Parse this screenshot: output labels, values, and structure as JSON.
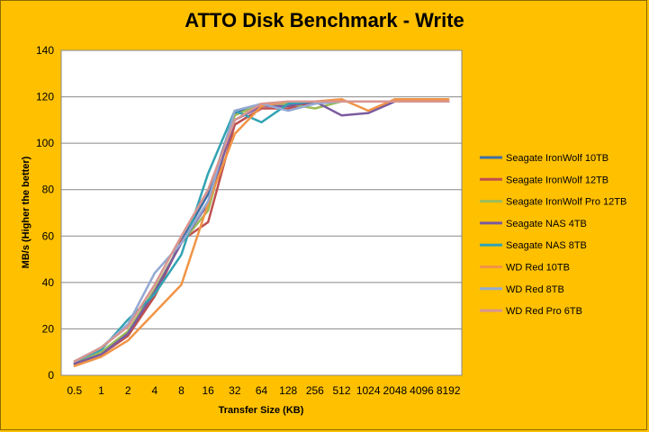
{
  "chart_data": {
    "type": "line",
    "title": "ATTO Disk Benchmark - Write",
    "xlabel": "Transfer Size (KB)",
    "ylabel": "MB/s (Higher the better)",
    "ylim": [
      0,
      140
    ],
    "yticks": [
      0,
      20,
      40,
      60,
      80,
      100,
      120,
      140
    ],
    "grid": true,
    "legend_position": "right",
    "categories": [
      "0.5",
      "1",
      "2",
      "4",
      "8",
      "16",
      "32",
      "64",
      "128",
      "256",
      "512",
      "1024",
      "2048",
      "4096",
      "8192"
    ],
    "series": [
      {
        "name": "Seagate IronWolf 10TB",
        "color": "#3F6EA5",
        "values": [
          5,
          9,
          18,
          35,
          58,
          78,
          113,
          117,
          117,
          118,
          118,
          118,
          118,
          118,
          118
        ]
      },
      {
        "name": "Seagate IronWolf 12TB",
        "color": "#C0504D",
        "values": [
          5,
          9,
          17,
          34,
          58,
          66,
          108,
          115,
          115,
          118,
          118,
          118,
          118,
          118,
          118
        ]
      },
      {
        "name": "Seagate IronWolf Pro 12TB",
        "color": "#9BBB59",
        "values": [
          5,
          10,
          19,
          37,
          57,
          71,
          112,
          117,
          117,
          115,
          118,
          118,
          118,
          118,
          118
        ]
      },
      {
        "name": "Seagate NAS 4TB",
        "color": "#7B5A9F",
        "values": [
          5,
          9,
          18,
          36,
          57,
          74,
          110,
          116,
          116,
          118,
          112,
          113,
          118,
          118,
          118
        ]
      },
      {
        "name": "Seagate NAS 8TB",
        "color": "#31A3B3",
        "values": [
          6,
          11,
          24,
          35,
          52,
          87,
          114,
          109,
          117,
          118,
          118,
          118,
          118,
          118,
          118
        ]
      },
      {
        "name": "WD Red 10TB",
        "color": "#F09446",
        "values": [
          4,
          8,
          15,
          27,
          39,
          74,
          104,
          116,
          118,
          118,
          119,
          114,
          119,
          119,
          119
        ]
      },
      {
        "name": "WD Red 8TB",
        "color": "#93A9D2",
        "values": [
          6,
          12,
          22,
          44,
          57,
          75,
          114,
          117,
          114,
          117,
          118,
          118,
          118,
          118,
          118
        ]
      },
      {
        "name": "WD Red Pro 6TB",
        "color": "#D99590",
        "values": [
          6,
          12,
          21,
          39,
          60,
          80,
          110,
          117,
          118,
          118,
          118,
          118,
          118,
          118,
          118
        ]
      }
    ]
  }
}
